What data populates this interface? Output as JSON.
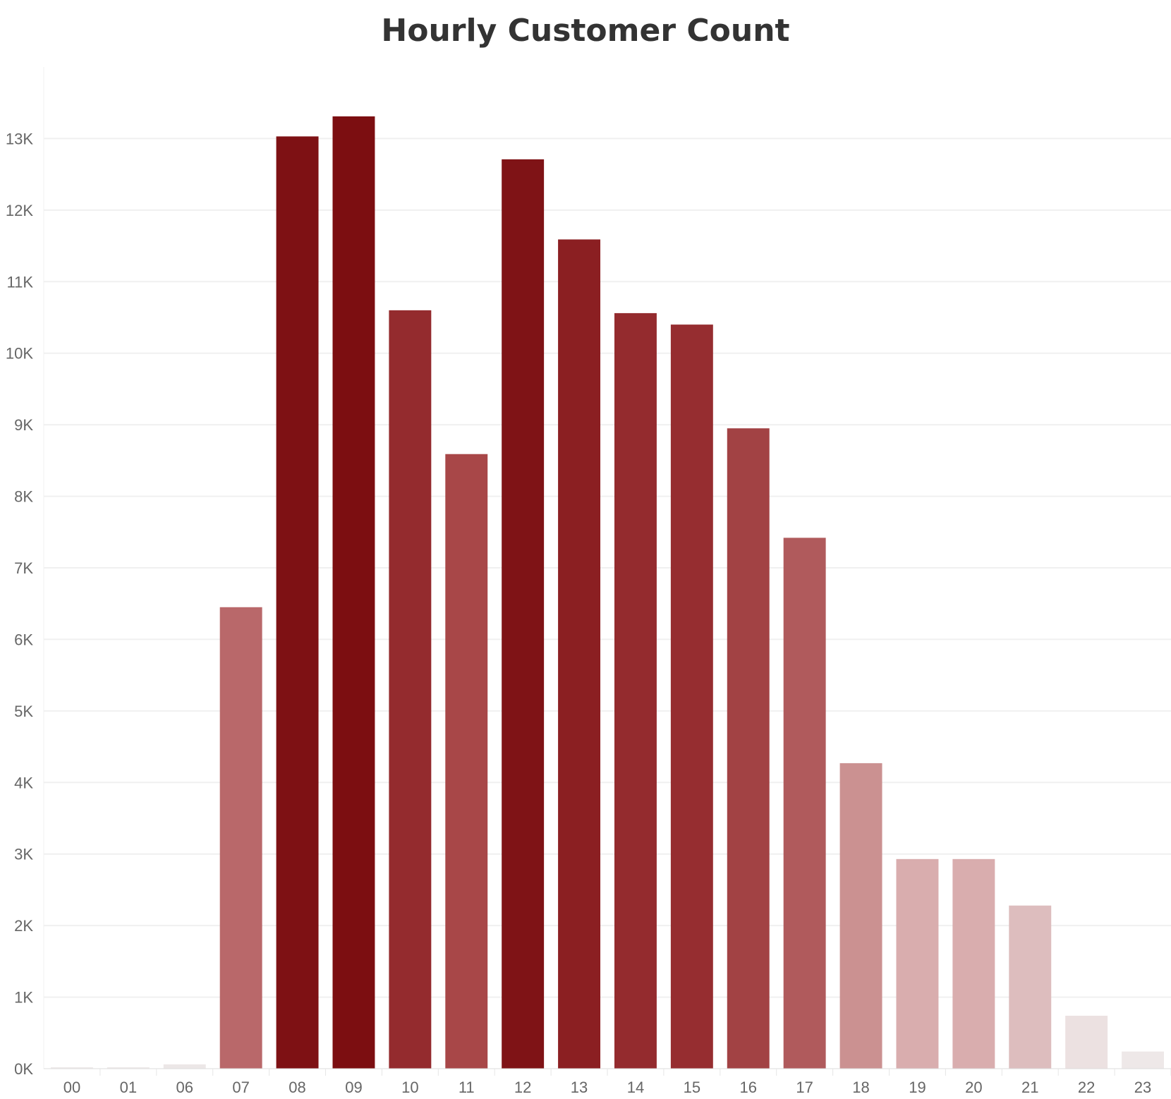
{
  "chart_data": {
    "type": "bar",
    "title": "Hourly Customer Count",
    "xlabel": "",
    "ylabel": "",
    "categories": [
      "00",
      "01",
      "06",
      "07",
      "08",
      "09",
      "10",
      "11",
      "12",
      "13",
      "14",
      "15",
      "16",
      "17",
      "18",
      "19",
      "20",
      "21",
      "22",
      "23"
    ],
    "values": [
      10,
      5,
      60,
      6450,
      13030,
      13310,
      10600,
      8590,
      12710,
      11590,
      10560,
      10400,
      8950,
      7420,
      4270,
      2930,
      2930,
      2280,
      740,
      240
    ],
    "colors": [
      "#eeeaea",
      "#eeeaea",
      "#ece7e7",
      "#b9686a",
      "#7e1114",
      "#7c0e11",
      "#942b2e",
      "#a84748",
      "#7f1316",
      "#8b1f22",
      "#942b2e",
      "#962d30",
      "#a24244",
      "#b05a5c",
      "#cb9191",
      "#d9adae",
      "#d9adae",
      "#ddbdbe",
      "#ece1e1",
      "#eee8e8"
    ],
    "ylim": [
      0,
      14000
    ],
    "yticks": [
      0,
      1000,
      2000,
      3000,
      4000,
      5000,
      6000,
      7000,
      8000,
      9000,
      10000,
      11000,
      12000,
      13000
    ],
    "ytick_labels": [
      "0K",
      "1K",
      "2K",
      "3K",
      "4K",
      "5K",
      "6K",
      "7K",
      "8K",
      "9K",
      "10K",
      "11K",
      "12K",
      "13K"
    ],
    "grid": true,
    "legend": "none"
  }
}
